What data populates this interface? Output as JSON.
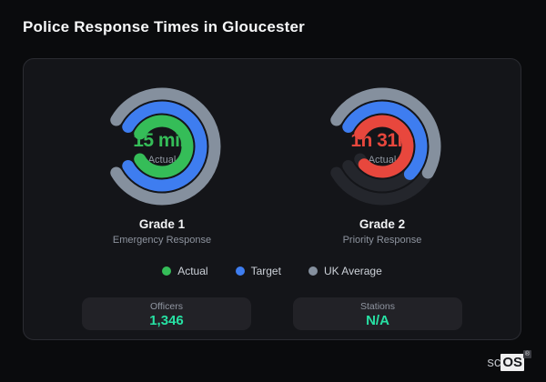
{
  "title": "Police Response Times in Gloucester",
  "colors": {
    "actual_green": "#35bd58",
    "target_blue": "#3e7df0",
    "uk_average_gray": "#85909e",
    "actual_over_target_red": "#e8473d",
    "ring_track": "#24262c",
    "stat_value_teal": "#27e2a4"
  },
  "chart_data": [
    {
      "type": "gauge",
      "title": "Grade 1",
      "subtitle": "Emergency Response",
      "center_label": "15 min",
      "center_sublabel": "Actual",
      "arc_span_degrees": 300,
      "rings": [
        {
          "name": "UK Average",
          "color": "#85909e",
          "fill_fraction": 1.0
        },
        {
          "name": "Target",
          "color": "#3e7df0",
          "fill_fraction": 1.0
        },
        {
          "name": "Actual",
          "color": "#35bd58",
          "fill_fraction": 1.0
        }
      ]
    },
    {
      "type": "gauge",
      "title": "Grade 2",
      "subtitle": "Priority Response",
      "center_label": "1h 31m",
      "center_sublabel": "Actual",
      "arc_span_degrees": 300,
      "rings": [
        {
          "name": "UK Average",
          "color": "#85909e",
          "fill_fraction": 0.6
        },
        {
          "name": "Target",
          "color": "#3e7df0",
          "fill_fraction": 0.65
        },
        {
          "name": "Actual",
          "color": "#e8473d",
          "fill_fraction": 0.95
        }
      ]
    }
  ],
  "legend": [
    {
      "label": "Actual",
      "color": "#35bd58"
    },
    {
      "label": "Target",
      "color": "#3e7df0"
    },
    {
      "label": "UK Average",
      "color": "#85909e"
    }
  ],
  "stats": [
    {
      "label": "Officers",
      "value": "1,346"
    },
    {
      "label": "Stations",
      "value": "N/A"
    }
  ],
  "watermark": {
    "prefix": "sc",
    "os": "OS",
    "registered": "®"
  }
}
